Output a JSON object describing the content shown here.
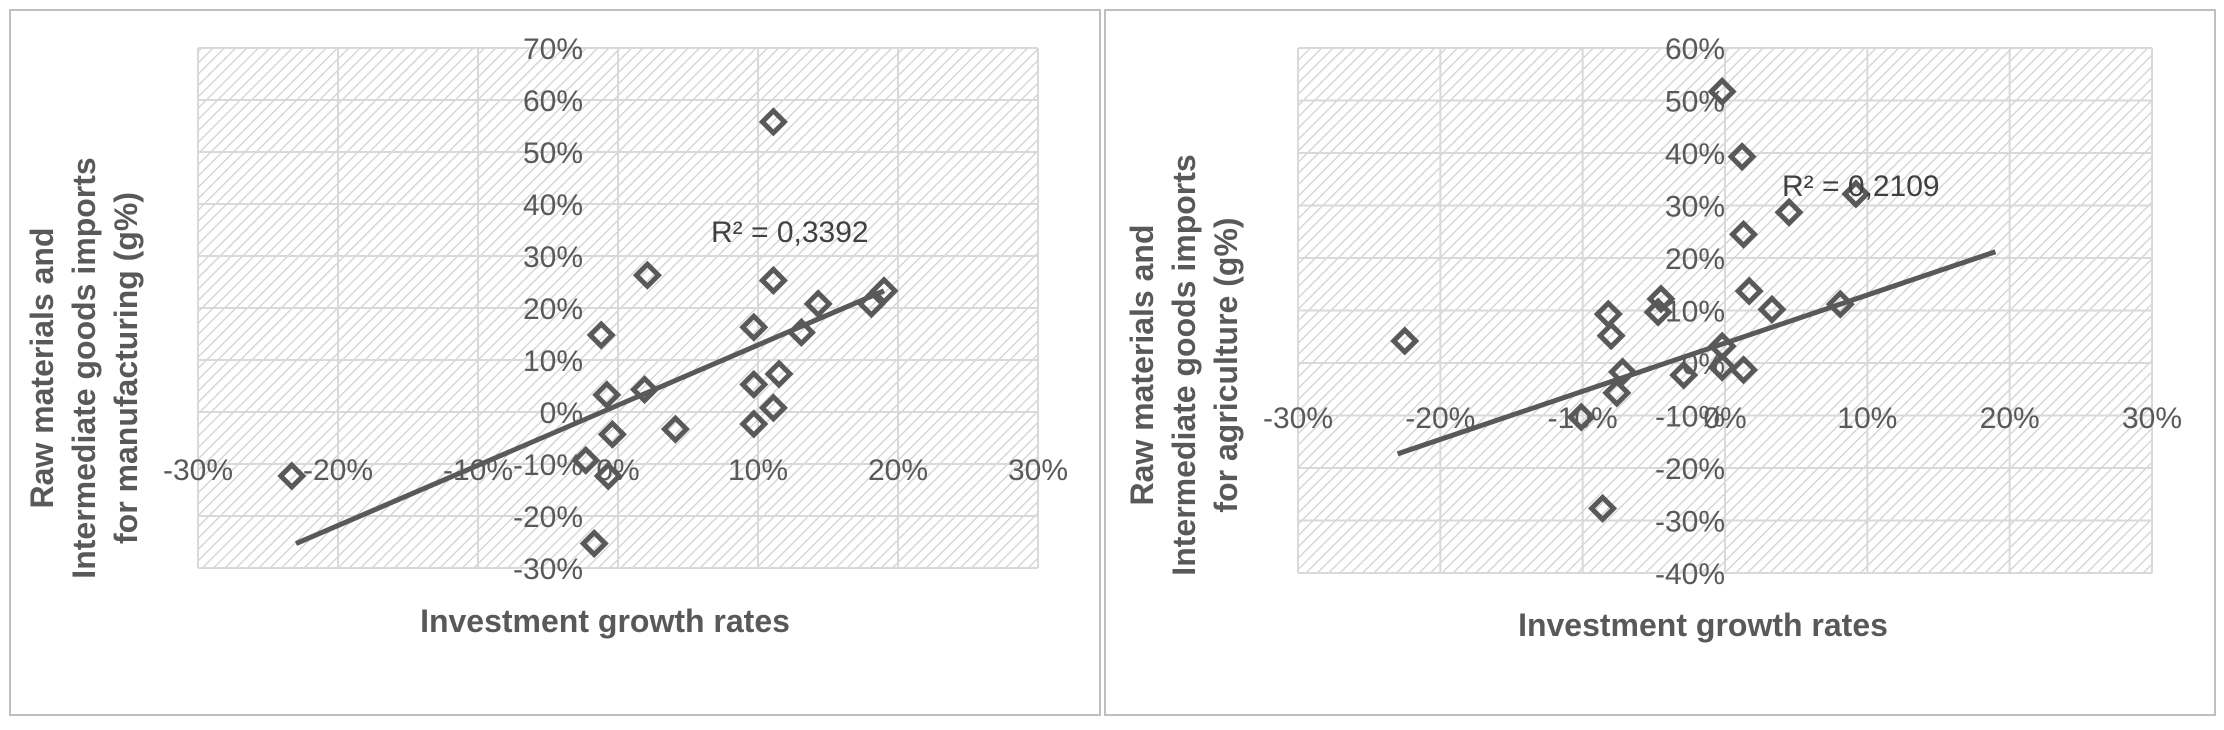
{
  "chart_data": [
    {
      "type": "scatter",
      "xlabel": "Investment growth rates",
      "ylabel": "Raw materials and Intermediate goods imports for manufacturing  (g%)",
      "ylabel_lines": [
        "Raw materials and",
        "Intermediate goods imports",
        "for manufacturing  (g%)"
      ],
      "xlim": [
        -0.3,
        0.3
      ],
      "ylim": [
        -0.3,
        0.7
      ],
      "x_ticks": [
        -0.3,
        -0.2,
        -0.1,
        0.0,
        0.1,
        0.2,
        0.3
      ],
      "y_ticks": [
        -0.3,
        -0.2,
        -0.1,
        0.0,
        0.1,
        0.2,
        0.3,
        0.4,
        0.5,
        0.6,
        0.7
      ],
      "x_tick_labels": [
        "-30%",
        "-20%",
        "-10%",
        "0%",
        "10%",
        "20%",
        "30%"
      ],
      "y_tick_labels": [
        "-30%",
        "-20%",
        "-10%",
        "0%",
        "10%",
        "20%",
        "30%",
        "40%",
        "50%",
        "60%",
        "70%"
      ],
      "grid": true,
      "marker": "hollow-diamond",
      "trendline": {
        "type": "linear",
        "x": [
          -0.23,
          0.19
        ],
        "y": [
          -0.253,
          0.233
        ],
        "r2_label": "R² = 0,3392"
      },
      "points": [
        {
          "x": -0.233,
          "y": -0.123
        },
        {
          "x": -0.017,
          "y": -0.253
        },
        {
          "x": -0.023,
          "y": -0.093
        },
        {
          "x": -0.012,
          "y": 0.148
        },
        {
          "x": -0.008,
          "y": 0.033
        },
        {
          "x": -0.007,
          "y": -0.123
        },
        {
          "x": -0.004,
          "y": -0.043
        },
        {
          "x": 0.021,
          "y": 0.263
        },
        {
          "x": 0.019,
          "y": 0.043
        },
        {
          "x": 0.041,
          "y": -0.033
        },
        {
          "x": 0.097,
          "y": -0.023
        },
        {
          "x": 0.097,
          "y": 0.053
        },
        {
          "x": 0.097,
          "y": 0.163
        },
        {
          "x": 0.111,
          "y": 0.558
        },
        {
          "x": 0.111,
          "y": 0.253
        },
        {
          "x": 0.111,
          "y": 0.008
        },
        {
          "x": 0.115,
          "y": 0.073
        },
        {
          "x": 0.131,
          "y": 0.153
        },
        {
          "x": 0.143,
          "y": 0.208
        },
        {
          "x": 0.181,
          "y": 0.208
        },
        {
          "x": 0.19,
          "y": 0.233
        }
      ]
    },
    {
      "type": "scatter",
      "xlabel": "Investment growth rates",
      "ylabel": "Raw materials and Intermediate goods imports for agriculture  (g%)",
      "ylabel_lines": [
        "Raw materials and",
        "Intermediate goods imports",
        "for agriculture  (g%)"
      ],
      "xlim": [
        -0.3,
        0.3
      ],
      "ylim": [
        -0.4,
        0.6
      ],
      "x_ticks": [
        -0.3,
        -0.2,
        -0.1,
        0.0,
        0.1,
        0.2,
        0.3
      ],
      "y_ticks": [
        -0.4,
        -0.3,
        -0.2,
        -0.1,
        0.0,
        0.1,
        0.2,
        0.3,
        0.4,
        0.5,
        0.6
      ],
      "x_tick_labels": [
        "-30%",
        "-20%",
        "-10%",
        "0%",
        "10%",
        "20%",
        "30%"
      ],
      "y_tick_labels": [
        "-40%",
        "-30%",
        "-20%",
        "-10%",
        "0%",
        "10%",
        "20%",
        "30%",
        "40%",
        "50%",
        "60%"
      ],
      "grid": true,
      "marker": "hollow-diamond",
      "trendline": {
        "type": "linear",
        "x": [
          -0.23,
          0.19
        ],
        "y": [
          -0.173,
          0.212
        ],
        "r2_label": "R² = 0,2109"
      },
      "points": [
        {
          "x": -0.225,
          "y": 0.042
        },
        {
          "x": -0.101,
          "y": -0.103
        },
        {
          "x": -0.086,
          "y": -0.277
        },
        {
          "x": -0.082,
          "y": 0.093
        },
        {
          "x": -0.08,
          "y": 0.052
        },
        {
          "x": -0.076,
          "y": -0.057
        },
        {
          "x": -0.072,
          "y": -0.017
        },
        {
          "x": -0.045,
          "y": 0.122
        },
        {
          "x": -0.047,
          "y": 0.097
        },
        {
          "x": -0.029,
          "y": -0.023
        },
        {
          "x": -0.002,
          "y": 0.517
        },
        {
          "x": -0.002,
          "y": 0.032
        },
        {
          "x": -0.002,
          "y": -0.008
        },
        {
          "x": 0.012,
          "y": 0.393
        },
        {
          "x": 0.013,
          "y": 0.245
        },
        {
          "x": 0.013,
          "y": -0.013
        },
        {
          "x": 0.017,
          "y": 0.137
        },
        {
          "x": 0.033,
          "y": 0.102
        },
        {
          "x": 0.045,
          "y": 0.287
        },
        {
          "x": 0.081,
          "y": 0.112
        },
        {
          "x": 0.092,
          "y": 0.322
        }
      ]
    }
  ]
}
